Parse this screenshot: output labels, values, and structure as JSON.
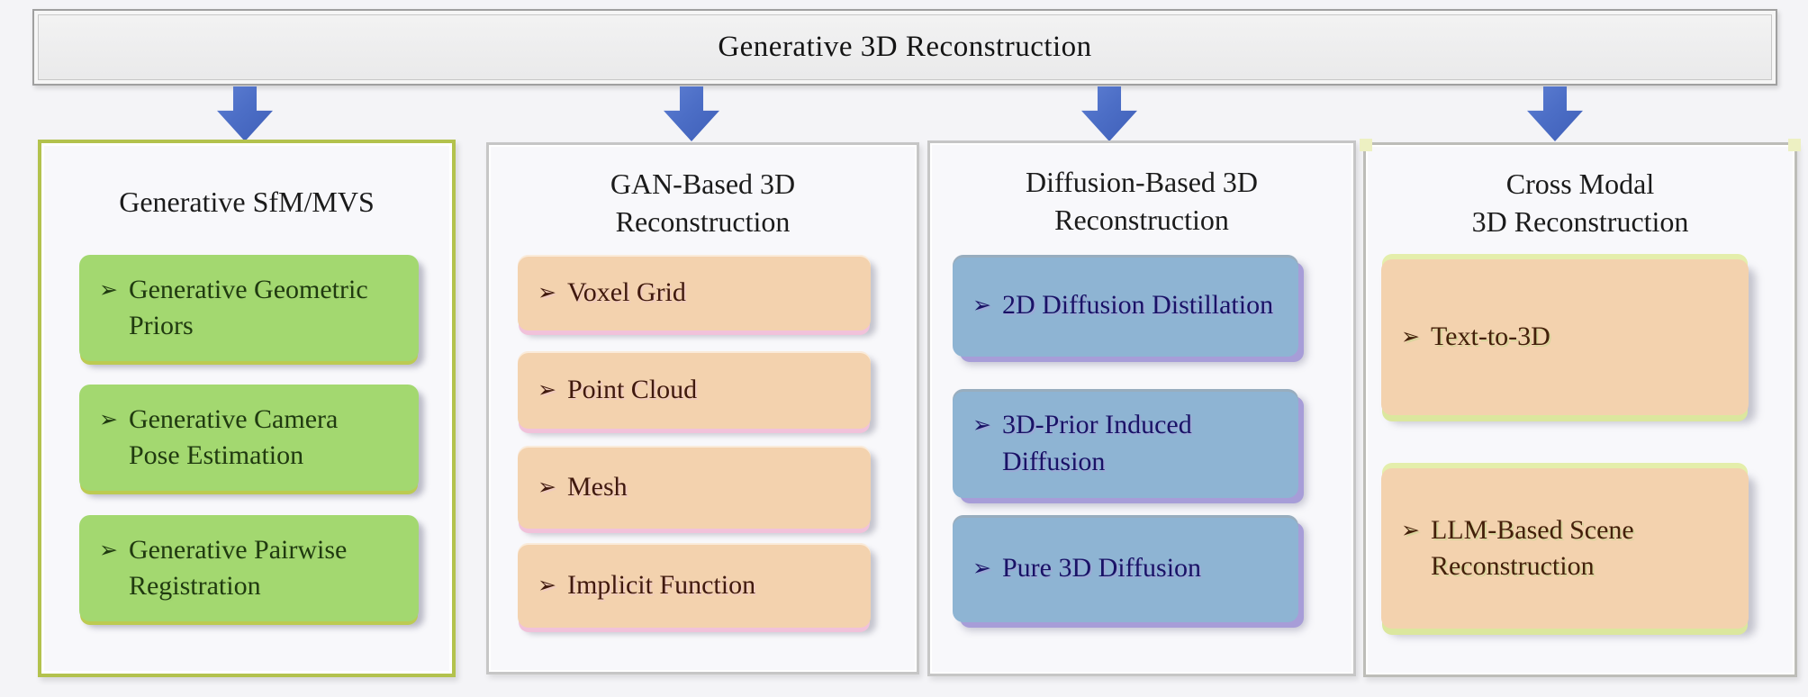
{
  "banner": {
    "title": "Generative 3D Reconstruction"
  },
  "bullet": "➢",
  "columns": [
    {
      "id": "generative-sfm-mvs",
      "header_lines": [
        "Generative SfM/MVS"
      ],
      "items": [
        "Generative Geometric Priors",
        "Generative Camera Pose Estimation",
        "Generative Pairwise Registration"
      ]
    },
    {
      "id": "gan-based-3d-reconstruction",
      "header_lines": [
        "GAN-Based 3D",
        "Reconstruction"
      ],
      "items": [
        "Voxel Grid",
        "Point Cloud",
        "Mesh",
        "Implicit Function"
      ]
    },
    {
      "id": "diffusion-based-3d-reconstruction",
      "header_lines": [
        "Diffusion-Based 3D",
        "Reconstruction"
      ],
      "items": [
        "2D Diffusion Distillation",
        "3D-Prior Induced Diffusion",
        "Pure 3D Diffusion"
      ]
    },
    {
      "id": "cross-modal-3d-reconstruction",
      "header_lines": [
        "Cross Modal",
        "3D Reconstruction"
      ],
      "items": [
        "Text-to-3D",
        "LLM-Based Scene Reconstruction"
      ]
    }
  ],
  "colors": {
    "arrow_blue": "#4c6ec6",
    "column1_border_olive": "#b3c24d",
    "green_item": "#a3d870",
    "peach_item": "#f3d2ae",
    "blue_item": "#8eb4d3",
    "purple_shadow": "#a79dd8",
    "pink_shadow": "#f1c2da",
    "yellow_green_glow": "#e4eeab"
  }
}
